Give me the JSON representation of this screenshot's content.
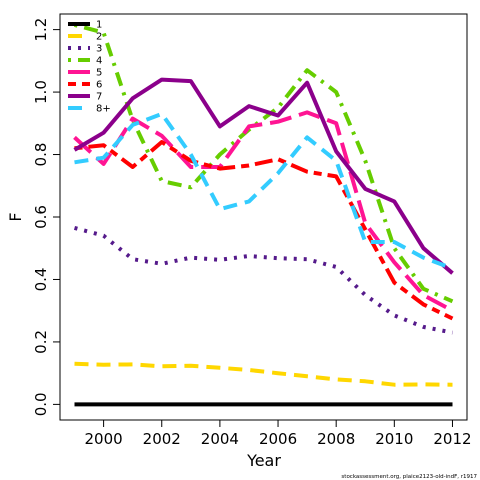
{
  "chart_data": {
    "type": "line",
    "xlabel": "Year",
    "ylabel": "F",
    "xlim": [
      1998.5,
      2012.5
    ],
    "ylim": [
      -0.05,
      1.25
    ],
    "x_ticks": [
      2000,
      2002,
      2004,
      2006,
      2008,
      2010,
      2012
    ],
    "y_ticks": [
      0.0,
      0.2,
      0.4,
      0.6,
      0.8,
      1.0,
      1.2
    ],
    "x_tick_labels": [
      "2000",
      "2002",
      "2004",
      "2006",
      "2008",
      "2010",
      "2012"
    ],
    "y_tick_labels": [
      "0.0",
      "0.2",
      "0.4",
      "0.6",
      "0.8",
      "1.0",
      "1.2"
    ],
    "grid": false,
    "legend_position": "top-left",
    "credit": "stockassessment.org, plaice2123-old-indF, r1917",
    "x": [
      1999,
      2000,
      2001,
      2002,
      2003,
      2004,
      2005,
      2006,
      2007,
      2008,
      2009,
      2010,
      2011,
      2012
    ],
    "series": [
      {
        "name": "1",
        "color": "#000000",
        "dash": "solid",
        "values": [
          0.0,
          0.0,
          0.0,
          0.0,
          0.0,
          0.0,
          0.0,
          0.0,
          0.0,
          0.0,
          0.0,
          0.0,
          0.0,
          0.0
        ]
      },
      {
        "name": "2",
        "color": "#FFD700",
        "dash": "dash",
        "values": [
          0.13,
          0.127,
          0.128,
          0.122,
          0.124,
          0.117,
          0.11,
          0.1,
          0.09,
          0.08,
          0.074,
          0.063,
          0.064,
          0.063
        ]
      },
      {
        "name": "3",
        "color": "#551A8B",
        "dash": "dot",
        "values": [
          0.565,
          0.54,
          0.465,
          0.45,
          0.47,
          0.463,
          0.475,
          0.468,
          0.465,
          0.44,
          0.35,
          0.285,
          0.248,
          0.23
        ]
      },
      {
        "name": "4",
        "color": "#66CD00",
        "dash": "dotdash",
        "values": [
          1.215,
          1.19,
          0.91,
          0.715,
          0.695,
          0.8,
          0.88,
          0.95,
          1.07,
          1.0,
          0.78,
          0.5,
          0.37,
          0.33
        ]
      },
      {
        "name": "5",
        "color": "#FF1493",
        "dash": "longdash",
        "values": [
          0.855,
          0.77,
          0.915,
          0.86,
          0.76,
          0.76,
          0.89,
          0.905,
          0.935,
          0.9,
          0.58,
          0.455,
          0.35,
          0.3
        ]
      },
      {
        "name": "6",
        "color": "#FF0000",
        "dash": "twodash",
        "values": [
          0.82,
          0.83,
          0.76,
          0.84,
          0.78,
          0.755,
          0.765,
          0.785,
          0.745,
          0.73,
          0.56,
          0.39,
          0.32,
          0.275
        ]
      },
      {
        "name": "7",
        "color": "#8B008B",
        "dash": "solid",
        "values": [
          0.815,
          0.87,
          0.98,
          1.04,
          1.035,
          0.89,
          0.955,
          0.925,
          1.03,
          0.81,
          0.69,
          0.65,
          0.5,
          0.42
        ]
      },
      {
        "name": "8+",
        "color": "#33CCFF",
        "dash": "dash",
        "values": [
          0.775,
          0.79,
          0.895,
          0.93,
          0.8,
          0.625,
          0.65,
          0.74,
          0.855,
          0.78,
          0.52,
          0.52,
          0.47,
          0.435
        ]
      }
    ]
  }
}
